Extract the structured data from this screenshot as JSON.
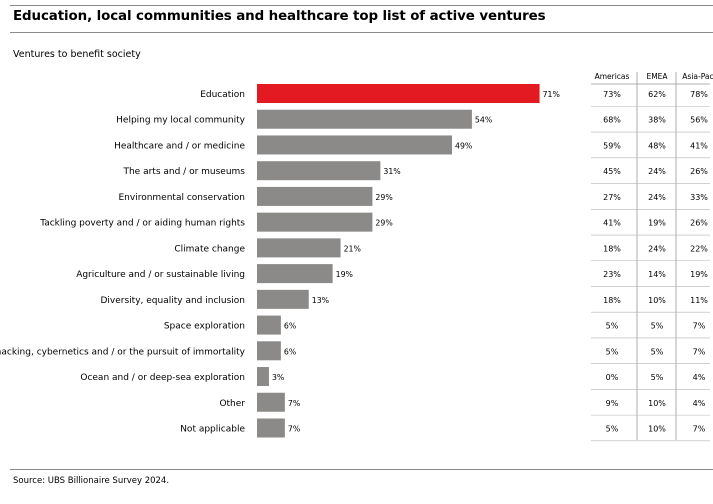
{
  "title": "Education, local communities and healthcare top list of active ventures",
  "subtitle": "Ventures to benefit society",
  "source": "Source: UBS Billionaire Survey 2024.",
  "colors": {
    "highlight": "#e31a22",
    "bar": "#8c8a88",
    "rule": "#8a8a8a",
    "text": "#000000"
  },
  "chart_data": {
    "type": "bar",
    "orientation": "horizontal",
    "title": "Education, local communities and healthcare top list of active ventures",
    "subtitle": "Ventures to benefit society",
    "unit": "%",
    "xlim": [
      0,
      75
    ],
    "highlighted_category": "Education",
    "categories": [
      "Education",
      "Helping my local community",
      "Healthcare and / or medicine",
      "The arts and / or museums",
      "Environmental conservation",
      "Tackling poverty and / or aiding human rights",
      "Climate change",
      "Agriculture and / or sustainable living",
      "Diversity, equality and inclusion",
      "Space exploration",
      "Biohacking, cybernetics and / or the pursuit of immortality",
      "Ocean and / or deep-sea exploration",
      "Other",
      "Not applicable"
    ],
    "values": [
      71,
      54,
      49,
      31,
      29,
      29,
      21,
      19,
      13,
      6,
      6,
      3,
      7,
      7
    ],
    "value_labels": [
      "71%",
      "54%",
      "49%",
      "31%",
      "29%",
      "29%",
      "21%",
      "19%",
      "13%",
      "6%",
      "6%",
      "3%",
      "7%",
      "7%"
    ],
    "regional_table": {
      "columns": [
        "Americas",
        "EMEA",
        "Asia-Paci"
      ],
      "rows": [
        [
          "73%",
          "62%",
          "78%"
        ],
        [
          "68%",
          "38%",
          "56%"
        ],
        [
          "59%",
          "48%",
          "41%"
        ],
        [
          "45%",
          "24%",
          "26%"
        ],
        [
          "27%",
          "24%",
          "33%"
        ],
        [
          "41%",
          "19%",
          "26%"
        ],
        [
          "18%",
          "24%",
          "22%"
        ],
        [
          "23%",
          "14%",
          "19%"
        ],
        [
          "18%",
          "10%",
          "11%"
        ],
        [
          "5%",
          "5%",
          "7%"
        ],
        [
          "5%",
          "5%",
          "7%"
        ],
        [
          "0%",
          "5%",
          "4%"
        ],
        [
          "9%",
          "10%",
          "4%"
        ],
        [
          "5%",
          "10%",
          "7%"
        ]
      ]
    }
  }
}
